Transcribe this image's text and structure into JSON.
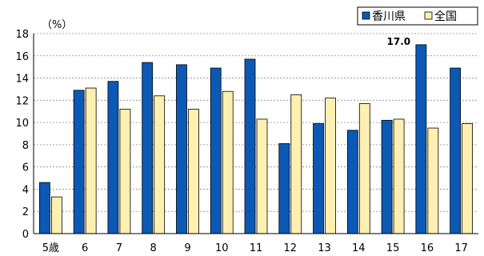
{
  "chart_data": {
    "type": "bar",
    "unit_label": "（%）",
    "categories": [
      "5歳",
      "6",
      "7",
      "8",
      "9",
      "10",
      "11",
      "12",
      "13",
      "14",
      "15",
      "16",
      "17"
    ],
    "series": [
      {
        "name": "香川県",
        "color": "#0b59b4",
        "values": [
          4.6,
          12.9,
          13.7,
          15.4,
          15.2,
          14.9,
          15.7,
          8.1,
          9.9,
          9.3,
          10.2,
          17.0,
          14.9
        ]
      },
      {
        "name": "全国",
        "color": "#fdf0b0",
        "values": [
          3.3,
          13.1,
          11.2,
          12.4,
          11.2,
          12.8,
          10.3,
          12.5,
          12.2,
          11.7,
          10.3,
          9.5,
          9.9
        ]
      }
    ],
    "ylim": [
      0,
      18
    ],
    "yticks": [
      0,
      2,
      4,
      6,
      8,
      10,
      12,
      14,
      16,
      18
    ],
    "grid": true,
    "legend_position": "top-right",
    "annotations": [
      {
        "text": "17.0",
        "category": "16",
        "series": "香川県"
      }
    ]
  }
}
